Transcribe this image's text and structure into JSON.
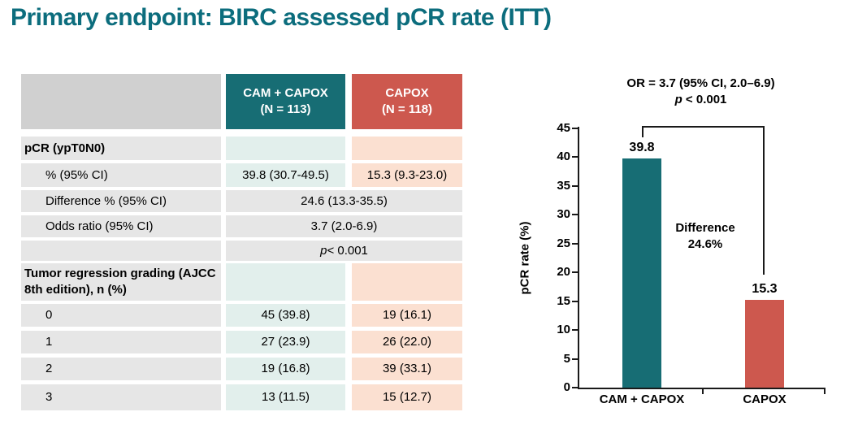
{
  "title": "Primary endpoint: BIRC assessed pCR rate (ITT)",
  "table": {
    "header": {
      "empty": "",
      "cam_line1": "CAM + CAPOX",
      "cam_line2": "(N = 113)",
      "capox_line1": "CAPOX",
      "capox_line2": "(N = 118)"
    },
    "rows": [
      {
        "label": "pCR (ypT0N0)",
        "cam": "",
        "capox": ""
      },
      {
        "label": "% (95% CI)",
        "cam": "39.8 (30.7-49.5)",
        "capox": "15.3 (9.3-23.0)"
      },
      {
        "label": "Difference % (95% CI)",
        "merged": "24.6 (13.3-35.5)"
      },
      {
        "label": "Odds ratio (95% CI)",
        "merged": "3.7 (2.0-6.9)"
      },
      {
        "label": "",
        "p_italic": "p",
        "p_rest": " < 0.001"
      },
      {
        "label": "Tumor regression grading (AJCC 8th edition), n (%)",
        "cam": "",
        "capox": ""
      },
      {
        "label": "0",
        "cam": "45 (39.8)",
        "capox": "19 (16.1)"
      },
      {
        "label": "1",
        "cam": "27 (23.9)",
        "capox": "26 (22.0)"
      },
      {
        "label": "2",
        "cam": "19 (16.8)",
        "capox": "39 (33.1)"
      },
      {
        "label": "3",
        "cam": "13 (11.5)",
        "capox": "15 (12.7)"
      }
    ]
  },
  "chart": {
    "annotation_line1": "OR = 3.7 (95% CI, 2.0–6.9)",
    "p_italic": "p",
    "p_rest": " < 0.001",
    "difference_line1": "Difference",
    "difference_line2": "24.6%",
    "ylabel": "pCR rate (%)"
  },
  "chart_data": {
    "type": "bar",
    "title": "",
    "categories": [
      "CAM + CAPOX",
      "CAPOX"
    ],
    "values": [
      39.8,
      15.3
    ],
    "bar_labels": [
      "39.8",
      "15.3"
    ],
    "colors": [
      "#176d74",
      "#cd584e"
    ],
    "xlabel": "",
    "ylabel": "pCR rate (%)",
    "ylim": [
      0,
      45
    ],
    "ytick_step": 5,
    "grid": false,
    "legend": "none",
    "annotations": [
      "OR = 3.7 (95% CI, 2.0–6.9)",
      "p < 0.001",
      "Difference 24.6%"
    ]
  },
  "colors": {
    "title_teal": "#0c6d7d",
    "cam_teal": "#176d74",
    "capox_red": "#cd584e",
    "cam_light": "#e2efec",
    "capox_light": "#fbe0d1",
    "label_gray": "#e6e6e6",
    "header_gray": "#d0d0d0"
  }
}
